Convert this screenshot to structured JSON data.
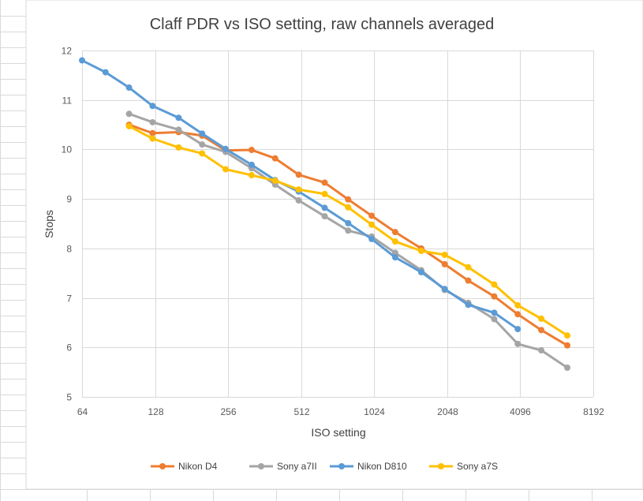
{
  "chart_data": {
    "type": "line",
    "title": "Claff PDR vs ISO setting, raw channels averaged",
    "xlabel": "ISO setting",
    "ylabel": "Stops",
    "xscale": "log2",
    "xlim": [
      64,
      8192
    ],
    "ylim": [
      5,
      12
    ],
    "xticks": [
      "64",
      "128",
      "256",
      "512",
      "1024",
      "2048",
      "4096",
      "8192"
    ],
    "yticks": [
      "5",
      "6",
      "7",
      "8",
      "9",
      "10",
      "11",
      "12"
    ],
    "grid": true,
    "legend_position": "bottom",
    "series": [
      {
        "name": "Nikon D4",
        "color": "#ED7D31",
        "x": [
          100,
          125,
          160,
          200,
          250,
          320,
          400,
          500,
          640,
          800,
          1000,
          1250,
          1600,
          2000,
          2500,
          3200,
          4000,
          5000,
          6400
        ],
        "y": [
          10.5,
          10.33,
          10.35,
          10.28,
          9.98,
          9.99,
          9.82,
          9.49,
          9.33,
          8.99,
          8.66,
          8.33,
          8.0,
          7.68,
          7.35,
          7.03,
          6.67,
          6.35,
          6.04
        ]
      },
      {
        "name": "Sony a7II",
        "color": "#A5A5A5",
        "x": [
          100,
          125,
          160,
          200,
          250,
          320,
          400,
          500,
          640,
          800,
          1000,
          1250,
          1600,
          2000,
          2500,
          3200,
          4000,
          5000,
          6400
        ],
        "y": [
          10.72,
          10.55,
          10.4,
          10.1,
          9.95,
          9.62,
          9.29,
          8.97,
          8.65,
          8.36,
          8.24,
          7.91,
          7.56,
          7.16,
          6.9,
          6.57,
          6.07,
          5.94,
          5.59
        ]
      },
      {
        "name": "Nikon D810",
        "color": "#5B9BD5",
        "x": [
          64,
          80,
          100,
          125,
          160,
          200,
          250,
          320,
          400,
          500,
          640,
          800,
          1000,
          1250,
          1600,
          2000,
          2500,
          3200,
          4000
        ],
        "y": [
          11.8,
          11.56,
          11.25,
          10.88,
          10.64,
          10.32,
          10.01,
          9.69,
          9.38,
          9.15,
          8.82,
          8.51,
          8.19,
          7.82,
          7.52,
          7.18,
          6.86,
          6.7,
          6.37
        ]
      },
      {
        "name": "Sony a7S",
        "color": "#FFC000",
        "x": [
          100,
          125,
          160,
          200,
          250,
          320,
          400,
          500,
          640,
          800,
          1000,
          1250,
          1600,
          2000,
          2500,
          3200,
          4000,
          5000,
          6400
        ],
        "y": [
          10.47,
          10.22,
          10.04,
          9.92,
          9.6,
          9.48,
          9.37,
          9.19,
          9.1,
          8.83,
          8.48,
          8.14,
          7.95,
          7.87,
          7.62,
          7.27,
          6.85,
          6.58,
          6.24
        ]
      }
    ]
  }
}
